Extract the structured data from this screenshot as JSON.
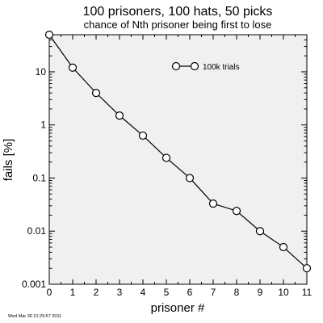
{
  "chart_data": {
    "type": "line",
    "title": "100 prisoners, 100 hats, 50 picks",
    "subtitle": "chance of Nth prisoner being first to lose",
    "xlabel": "prisoner #",
    "ylabel": "fails [%]",
    "xlim": [
      0,
      11
    ],
    "ylim": [
      0.001,
      50
    ],
    "yscale": "log",
    "grid": false,
    "legend_position": "top-right",
    "x_ticks": [
      "0",
      "1",
      "2",
      "3",
      "4",
      "5",
      "6",
      "7",
      "8",
      "9",
      "10",
      "11"
    ],
    "y_ticks": [
      {
        "value": 0.001,
        "label": "0.001"
      },
      {
        "value": 0.01,
        "label": "0.01"
      },
      {
        "value": 0.1,
        "label": "0.1"
      },
      {
        "value": 1,
        "label": "1"
      },
      {
        "value": 10,
        "label": "10"
      }
    ],
    "series": [
      {
        "name": "100k trials",
        "x": [
          0,
          1,
          2,
          3,
          4,
          5,
          6,
          7,
          8,
          9,
          10,
          11
        ],
        "y": [
          50,
          12,
          4,
          1.5,
          0.63,
          0.24,
          0.1,
          0.033,
          0.024,
          0.01,
          0.005,
          0.002
        ]
      }
    ],
    "footer_timestamp": "Wed Mar 30 21:29:57 2011",
    "colors": {
      "plot_background": "#f0f0f0",
      "line": "#000000",
      "marker_fill": "#ffffff"
    }
  }
}
